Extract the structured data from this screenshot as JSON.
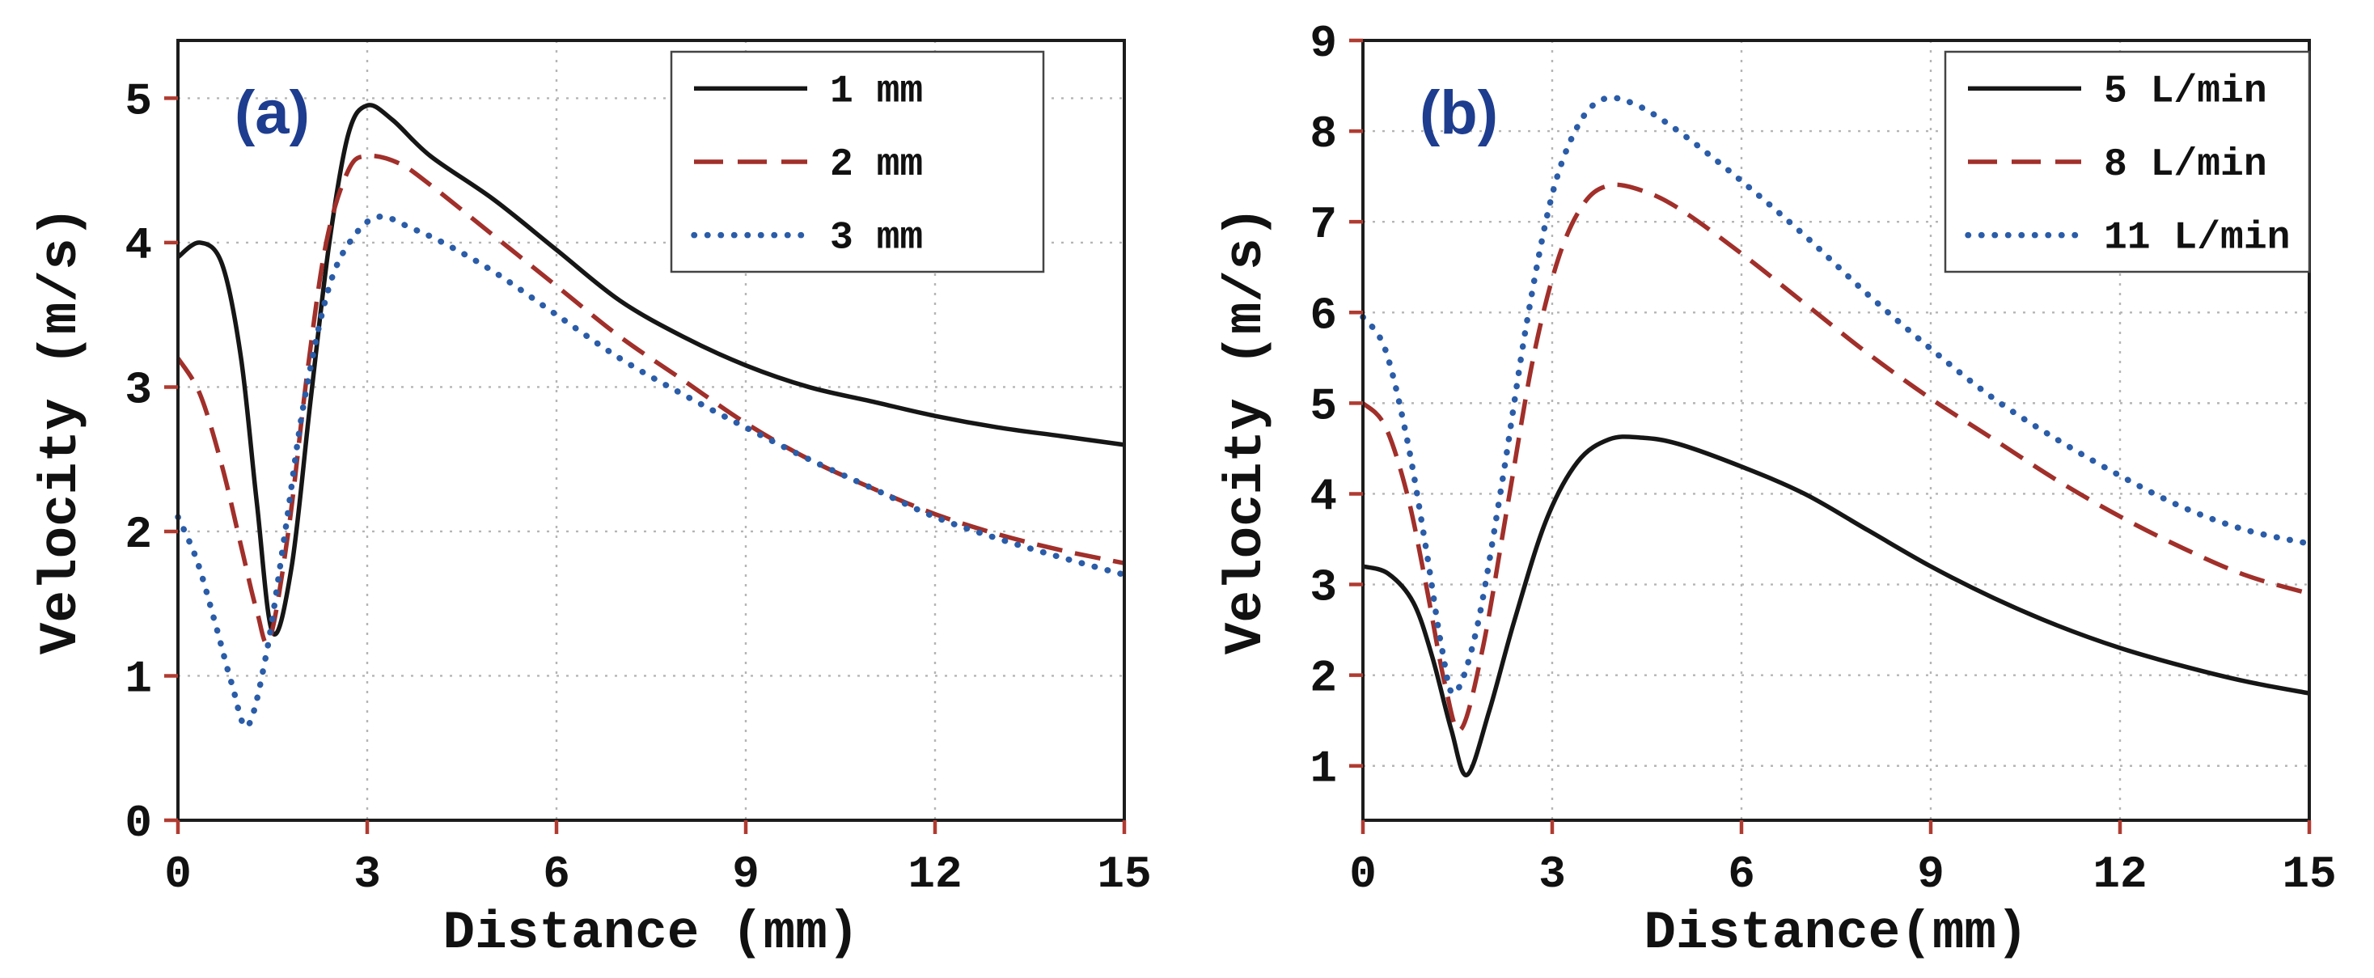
{
  "page": {
    "background": "#ffffff"
  },
  "chart_data": [
    {
      "type": "line",
      "panel_label": "(a)",
      "title": "",
      "xlabel": "Distance (mm)",
      "ylabel": "Velocity (m/s)",
      "xlim": [
        0,
        15
      ],
      "ylim": [
        0,
        5.4
      ],
      "xticks": [
        0,
        3,
        6,
        9,
        12,
        15
      ],
      "yticks": [
        0,
        1,
        2,
        3,
        4,
        5
      ],
      "grid": true,
      "legend_position": "top-right",
      "colors": {
        "tick": "#b03b31",
        "grid": "#b5b5b5",
        "border": "#1c1c1c",
        "panel_label": "#1e3d8f"
      },
      "series": [
        {
          "name": "1 mm",
          "style": "solid",
          "color": "#161616",
          "x": [
            0,
            0.35,
            0.7,
            1.0,
            1.25,
            1.5,
            1.8,
            2.1,
            2.4,
            2.7,
            3.0,
            3.4,
            4.0,
            5.0,
            6.0,
            7.0,
            8.0,
            9.0,
            10.0,
            11.0,
            12.0,
            13.0,
            14.0,
            15.0
          ],
          "y": [
            3.9,
            4.0,
            3.85,
            3.2,
            2.2,
            1.3,
            1.75,
            2.9,
            4.0,
            4.75,
            4.95,
            4.85,
            4.6,
            4.3,
            3.95,
            3.6,
            3.35,
            3.15,
            3.0,
            2.9,
            2.8,
            2.72,
            2.66,
            2.6
          ]
        },
        {
          "name": "2 mm",
          "style": "dashed",
          "color": "#a12f2a",
          "x": [
            0,
            0.35,
            0.7,
            1.0,
            1.25,
            1.45,
            1.75,
            2.05,
            2.35,
            2.7,
            3.0,
            3.5,
            4.0,
            5.0,
            6.0,
            7.0,
            8.0,
            9.0,
            10.0,
            11.0,
            12.0,
            13.0,
            14.0,
            15.0
          ],
          "y": [
            3.2,
            2.95,
            2.45,
            1.9,
            1.45,
            1.25,
            2.0,
            3.1,
            4.0,
            4.5,
            4.6,
            4.55,
            4.4,
            4.05,
            3.7,
            3.35,
            3.05,
            2.75,
            2.5,
            2.3,
            2.12,
            1.98,
            1.87,
            1.78
          ]
        },
        {
          "name": "3 mm",
          "style": "dotted",
          "color": "#2a5ca8",
          "x": [
            0,
            0.3,
            0.6,
            0.85,
            1.1,
            1.4,
            1.7,
            2.0,
            2.4,
            2.8,
            3.2,
            3.7,
            4.2,
            5.0,
            6.0,
            7.0,
            8.0,
            9.0,
            10.0,
            11.0,
            12.0,
            13.0,
            14.0,
            15.0
          ],
          "y": [
            2.1,
            1.8,
            1.35,
            0.95,
            0.65,
            1.15,
            2.0,
            2.9,
            3.7,
            4.05,
            4.18,
            4.1,
            4.0,
            3.8,
            3.5,
            3.2,
            2.95,
            2.72,
            2.5,
            2.3,
            2.1,
            1.95,
            1.82,
            1.7
          ]
        }
      ]
    },
    {
      "type": "line",
      "panel_label": "(b)",
      "title": "",
      "xlabel": "Distance(mm)",
      "ylabel": "Velocity (m/s)",
      "xlim": [
        0,
        15
      ],
      "ylim": [
        0.4,
        9.0
      ],
      "xticks": [
        0,
        3,
        6,
        9,
        12,
        15
      ],
      "yticks": [
        1,
        2,
        3,
        4,
        5,
        6,
        7,
        8,
        9
      ],
      "grid": true,
      "legend_position": "top-right",
      "colors": {
        "tick": "#b03b31",
        "grid": "#b5b5b5",
        "border": "#1c1c1c",
        "panel_label": "#1e3d8f"
      },
      "series": [
        {
          "name": "5 L/min",
          "style": "solid",
          "color": "#161616",
          "x": [
            0,
            0.4,
            0.8,
            1.1,
            1.4,
            1.65,
            2.0,
            2.4,
            2.9,
            3.4,
            3.9,
            4.4,
            5.0,
            6.0,
            7.0,
            8.0,
            9.0,
            10.0,
            11.0,
            12.0,
            13.0,
            14.0,
            15.0
          ],
          "y": [
            3.2,
            3.12,
            2.8,
            2.2,
            1.4,
            0.9,
            1.6,
            2.6,
            3.7,
            4.35,
            4.6,
            4.62,
            4.55,
            4.3,
            4.0,
            3.6,
            3.2,
            2.85,
            2.55,
            2.3,
            2.1,
            1.93,
            1.8
          ]
        },
        {
          "name": "8 L/min",
          "style": "dashed",
          "color": "#a12f2a",
          "x": [
            0,
            0.35,
            0.7,
            1.0,
            1.3,
            1.55,
            1.9,
            2.3,
            2.7,
            3.1,
            3.5,
            3.9,
            4.4,
            5.0,
            6.0,
            7.0,
            8.0,
            9.0,
            10.0,
            11.0,
            12.0,
            13.0,
            14.0,
            15.0
          ],
          "y": [
            5.0,
            4.75,
            4.0,
            3.0,
            1.9,
            1.4,
            2.3,
            3.9,
            5.5,
            6.6,
            7.2,
            7.4,
            7.35,
            7.15,
            6.65,
            6.1,
            5.55,
            5.05,
            4.6,
            4.15,
            3.75,
            3.4,
            3.1,
            2.9
          ]
        },
        {
          "name": "11 L/min",
          "style": "dotted",
          "color": "#2a5ca8",
          "x": [
            0,
            0.35,
            0.7,
            1.0,
            1.25,
            1.45,
            1.8,
            2.2,
            2.6,
            3.0,
            3.4,
            3.8,
            4.3,
            5.0,
            6.0,
            7.0,
            8.0,
            9.0,
            10.0,
            11.0,
            12.0,
            13.0,
            14.0,
            15.0
          ],
          "y": [
            5.95,
            5.6,
            4.6,
            3.4,
            2.3,
            1.8,
            2.5,
            4.1,
            5.9,
            7.3,
            8.05,
            8.35,
            8.3,
            8.0,
            7.45,
            6.85,
            6.2,
            5.6,
            5.05,
            4.6,
            4.2,
            3.85,
            3.6,
            3.45
          ]
        }
      ]
    }
  ]
}
